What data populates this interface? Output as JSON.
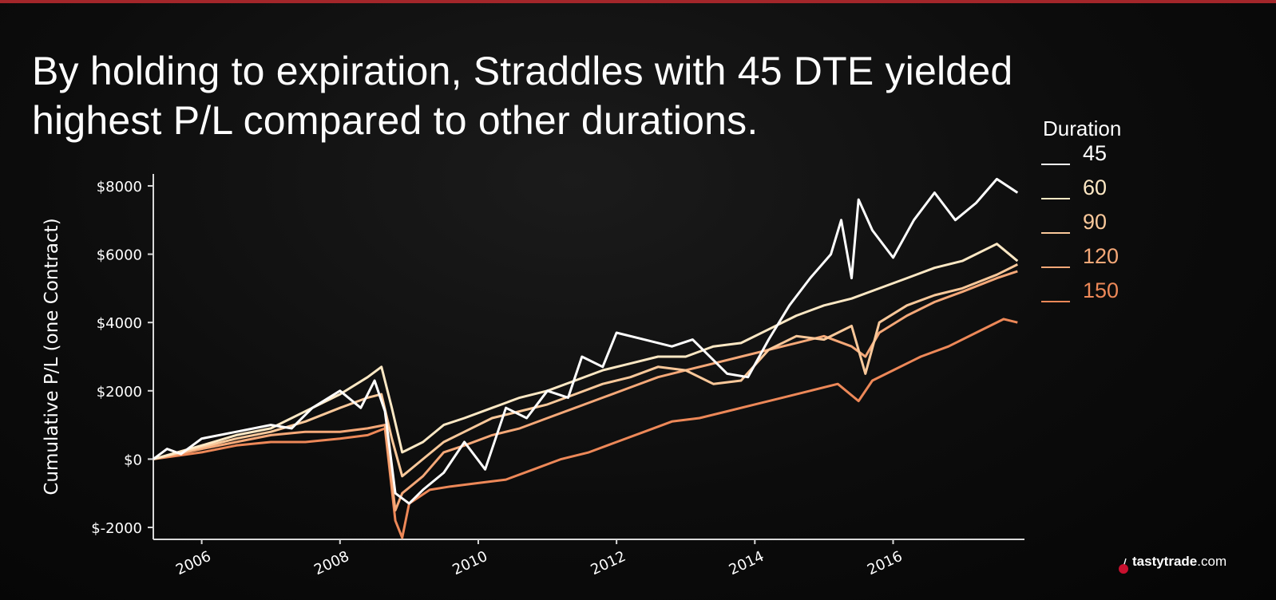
{
  "headline": {
    "line1": "By holding to expiration, Straddles with 45 DTE yielded",
    "line2": "highest P/L compared to other durations."
  },
  "brand": {
    "name": "tastytrade",
    "suffix": ".com"
  },
  "chart_data": {
    "type": "line",
    "title": "",
    "xlabel": "",
    "ylabel": "Cumulative P/L (one Contract)",
    "xlim": [
      2005.3,
      2017.9
    ],
    "ylim": [
      -2350,
      8350
    ],
    "y_ticks": [
      -2000,
      0,
      2000,
      4000,
      6000,
      8000
    ],
    "y_tick_labels": [
      "$-2000",
      "$0",
      "$2000",
      "$4000",
      "$6000",
      "$8000"
    ],
    "x_ticks": [
      2006,
      2008,
      2010,
      2012,
      2014,
      2016
    ],
    "x_tick_labels": [
      "2006",
      "2008",
      "2010",
      "2012",
      "2014",
      "2016"
    ],
    "grid": false,
    "legend_title": "Duration",
    "legend_position": "top-right",
    "series": [
      {
        "name": "45",
        "color": "#ffffff",
        "points": [
          [
            2005.3,
            0
          ],
          [
            2005.5,
            300
          ],
          [
            2005.7,
            150
          ],
          [
            2006.0,
            600
          ],
          [
            2006.5,
            800
          ],
          [
            2007.0,
            1000
          ],
          [
            2007.3,
            900
          ],
          [
            2007.6,
            1500
          ],
          [
            2008.0,
            2000
          ],
          [
            2008.3,
            1500
          ],
          [
            2008.5,
            2300
          ],
          [
            2008.65,
            1400
          ],
          [
            2008.8,
            -1000
          ],
          [
            2009.0,
            -1300
          ],
          [
            2009.2,
            -900
          ],
          [
            2009.5,
            -400
          ],
          [
            2009.8,
            500
          ],
          [
            2010.1,
            -300
          ],
          [
            2010.4,
            1500
          ],
          [
            2010.7,
            1200
          ],
          [
            2011.0,
            2000
          ],
          [
            2011.3,
            1800
          ],
          [
            2011.5,
            3000
          ],
          [
            2011.8,
            2700
          ],
          [
            2012.0,
            3700
          ],
          [
            2012.4,
            3500
          ],
          [
            2012.8,
            3300
          ],
          [
            2013.1,
            3500
          ],
          [
            2013.4,
            2900
          ],
          [
            2013.6,
            2500
          ],
          [
            2013.9,
            2400
          ],
          [
            2014.2,
            3500
          ],
          [
            2014.5,
            4500
          ],
          [
            2014.8,
            5300
          ],
          [
            2015.1,
            6000
          ],
          [
            2015.25,
            7000
          ],
          [
            2015.4,
            5300
          ],
          [
            2015.5,
            7600
          ],
          [
            2015.7,
            6700
          ],
          [
            2016.0,
            5900
          ],
          [
            2016.3,
            7000
          ],
          [
            2016.6,
            7800
          ],
          [
            2016.9,
            7000
          ],
          [
            2017.2,
            7500
          ],
          [
            2017.5,
            8200
          ],
          [
            2017.8,
            7800
          ]
        ]
      },
      {
        "name": "60",
        "color": "#fde8c4",
        "points": [
          [
            2005.3,
            0
          ],
          [
            2006.0,
            400
          ],
          [
            2006.5,
            700
          ],
          [
            2007.0,
            900
          ],
          [
            2007.5,
            1400
          ],
          [
            2008.0,
            1900
          ],
          [
            2008.4,
            2400
          ],
          [
            2008.6,
            2700
          ],
          [
            2008.75,
            1500
          ],
          [
            2008.9,
            200
          ],
          [
            2009.2,
            500
          ],
          [
            2009.5,
            1000
          ],
          [
            2009.8,
            1200
          ],
          [
            2010.2,
            1500
          ],
          [
            2010.6,
            1800
          ],
          [
            2011.0,
            2000
          ],
          [
            2011.4,
            2300
          ],
          [
            2011.8,
            2600
          ],
          [
            2012.2,
            2800
          ],
          [
            2012.6,
            3000
          ],
          [
            2013.0,
            3000
          ],
          [
            2013.4,
            3300
          ],
          [
            2013.8,
            3400
          ],
          [
            2014.2,
            3800
          ],
          [
            2014.6,
            4200
          ],
          [
            2015.0,
            4500
          ],
          [
            2015.4,
            4700
          ],
          [
            2015.8,
            5000
          ],
          [
            2016.2,
            5300
          ],
          [
            2016.6,
            5600
          ],
          [
            2017.0,
            5800
          ],
          [
            2017.5,
            6300
          ],
          [
            2017.8,
            5800
          ]
        ]
      },
      {
        "name": "90",
        "color": "#fac89a",
        "points": [
          [
            2005.3,
            0
          ],
          [
            2006.0,
            350
          ],
          [
            2006.5,
            600
          ],
          [
            2007.0,
            800
          ],
          [
            2007.5,
            1100
          ],
          [
            2008.0,
            1500
          ],
          [
            2008.4,
            1800
          ],
          [
            2008.6,
            1900
          ],
          [
            2008.75,
            600
          ],
          [
            2008.9,
            -500
          ],
          [
            2009.2,
            0
          ],
          [
            2009.5,
            500
          ],
          [
            2009.8,
            800
          ],
          [
            2010.2,
            1200
          ],
          [
            2010.6,
            1400
          ],
          [
            2011.0,
            1600
          ],
          [
            2011.4,
            1900
          ],
          [
            2011.8,
            2200
          ],
          [
            2012.2,
            2400
          ],
          [
            2012.6,
            2700
          ],
          [
            2013.0,
            2600
          ],
          [
            2013.4,
            2200
          ],
          [
            2013.8,
            2300
          ],
          [
            2014.2,
            3200
          ],
          [
            2014.6,
            3600
          ],
          [
            2015.0,
            3500
          ],
          [
            2015.4,
            3900
          ],
          [
            2015.6,
            2500
          ],
          [
            2015.8,
            4000
          ],
          [
            2016.2,
            4500
          ],
          [
            2016.6,
            4800
          ],
          [
            2017.0,
            5000
          ],
          [
            2017.5,
            5400
          ],
          [
            2017.8,
            5700
          ]
        ]
      },
      {
        "name": "120",
        "color": "#f5a878",
        "points": [
          [
            2005.3,
            0
          ],
          [
            2006.0,
            300
          ],
          [
            2006.5,
            500
          ],
          [
            2007.0,
            700
          ],
          [
            2007.5,
            800
          ],
          [
            2008.0,
            800
          ],
          [
            2008.4,
            900
          ],
          [
            2008.65,
            1000
          ],
          [
            2008.8,
            -1500
          ],
          [
            2008.9,
            -1000
          ],
          [
            2009.2,
            -500
          ],
          [
            2009.5,
            200
          ],
          [
            2009.8,
            400
          ],
          [
            2010.2,
            700
          ],
          [
            2010.6,
            900
          ],
          [
            2011.0,
            1200
          ],
          [
            2011.4,
            1500
          ],
          [
            2011.8,
            1800
          ],
          [
            2012.2,
            2100
          ],
          [
            2012.6,
            2400
          ],
          [
            2013.0,
            2600
          ],
          [
            2013.4,
            2800
          ],
          [
            2013.8,
            3000
          ],
          [
            2014.2,
            3200
          ],
          [
            2014.6,
            3400
          ],
          [
            2015.0,
            3600
          ],
          [
            2015.4,
            3300
          ],
          [
            2015.6,
            3000
          ],
          [
            2015.8,
            3700
          ],
          [
            2016.2,
            4200
          ],
          [
            2016.6,
            4600
          ],
          [
            2017.0,
            4900
          ],
          [
            2017.5,
            5300
          ],
          [
            2017.8,
            5500
          ]
        ]
      },
      {
        "name": "150",
        "color": "#ed8858",
        "points": [
          [
            2005.3,
            0
          ],
          [
            2006.0,
            200
          ],
          [
            2006.5,
            400
          ],
          [
            2007.0,
            500
          ],
          [
            2007.5,
            500
          ],
          [
            2008.0,
            600
          ],
          [
            2008.4,
            700
          ],
          [
            2008.65,
            900
          ],
          [
            2008.8,
            -1800
          ],
          [
            2008.9,
            -2300
          ],
          [
            2009.0,
            -1300
          ],
          [
            2009.3,
            -900
          ],
          [
            2009.6,
            -800
          ],
          [
            2010.0,
            -700
          ],
          [
            2010.4,
            -600
          ],
          [
            2010.8,
            -300
          ],
          [
            2011.2,
            0
          ],
          [
            2011.6,
            200
          ],
          [
            2012.0,
            500
          ],
          [
            2012.4,
            800
          ],
          [
            2012.8,
            1100
          ],
          [
            2013.2,
            1200
          ],
          [
            2013.6,
            1400
          ],
          [
            2014.0,
            1600
          ],
          [
            2014.4,
            1800
          ],
          [
            2014.8,
            2000
          ],
          [
            2015.2,
            2200
          ],
          [
            2015.5,
            1700
          ],
          [
            2015.7,
            2300
          ],
          [
            2016.0,
            2600
          ],
          [
            2016.4,
            3000
          ],
          [
            2016.8,
            3300
          ],
          [
            2017.2,
            3700
          ],
          [
            2017.6,
            4100
          ],
          [
            2017.8,
            4000
          ]
        ]
      }
    ]
  }
}
